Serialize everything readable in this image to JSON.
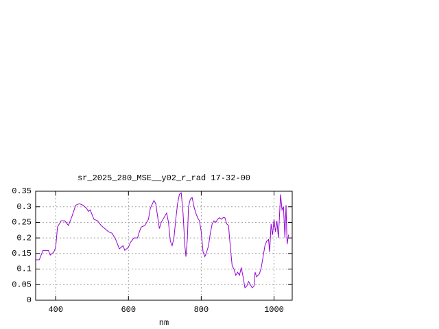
{
  "chart_data": {
    "type": "line",
    "title": "sr_2025_280_MSE__y02_r_rad 17-32-00",
    "x_label": "nm",
    "x": [
      345,
      355,
      365,
      375,
      380,
      385,
      395,
      400,
      405,
      415,
      425,
      435,
      445,
      455,
      465,
      475,
      485,
      490,
      495,
      505,
      515,
      525,
      535,
      545,
      555,
      565,
      575,
      585,
      590,
      600,
      605,
      615,
      625,
      630,
      635,
      645,
      655,
      660,
      670,
      675,
      685,
      690,
      700,
      705,
      710,
      715,
      720,
      725,
      730,
      735,
      740,
      745,
      750,
      755,
      758,
      762,
      765,
      770,
      775,
      780,
      785,
      790,
      795,
      800,
      805,
      810,
      815,
      820,
      825,
      830,
      835,
      840,
      845,
      850,
      855,
      860,
      865,
      870,
      875,
      880,
      885,
      890,
      895,
      900,
      905,
      910,
      915,
      920,
      925,
      930,
      935,
      940,
      945,
      948,
      952,
      960,
      965,
      970,
      975,
      980,
      985,
      988,
      992,
      996,
      1000,
      1004,
      1008,
      1012,
      1018,
      1022,
      1026,
      1030,
      1033,
      1036,
      1040
    ],
    "series": [
      {
        "name": "sr_2025_280_MSE__y02_r_rad",
        "color": "#9400d3",
        "values": [
          0.13,
          0.13,
          0.16,
          0.16,
          0.16,
          0.145,
          0.155,
          0.17,
          0.235,
          0.255,
          0.255,
          0.24,
          0.27,
          0.305,
          0.31,
          0.305,
          0.295,
          0.285,
          0.29,
          0.26,
          0.255,
          0.24,
          0.23,
          0.22,
          0.215,
          0.195,
          0.165,
          0.175,
          0.16,
          0.17,
          0.185,
          0.2,
          0.2,
          0.22,
          0.235,
          0.24,
          0.26,
          0.295,
          0.32,
          0.31,
          0.23,
          0.25,
          0.27,
          0.28,
          0.25,
          0.19,
          0.175,
          0.2,
          0.26,
          0.31,
          0.34,
          0.345,
          0.28,
          0.175,
          0.14,
          0.2,
          0.3,
          0.325,
          0.33,
          0.3,
          0.28,
          0.265,
          0.255,
          0.22,
          0.155,
          0.14,
          0.155,
          0.175,
          0.215,
          0.245,
          0.255,
          0.25,
          0.26,
          0.265,
          0.26,
          0.265,
          0.265,
          0.245,
          0.24,
          0.17,
          0.11,
          0.1,
          0.08,
          0.09,
          0.08,
          0.105,
          0.075,
          0.04,
          0.045,
          0.06,
          0.05,
          0.04,
          0.045,
          0.09,
          0.075,
          0.085,
          0.105,
          0.14,
          0.175,
          0.19,
          0.195,
          0.155,
          0.245,
          0.21,
          0.26,
          0.22,
          0.255,
          0.2,
          0.34,
          0.29,
          0.3,
          0.2,
          0.305,
          0.18,
          0.21
        ]
      }
    ],
    "xlim": [
      345,
      1050
    ],
    "ylim": [
      0,
      0.35
    ],
    "xticks": [
      400,
      600,
      800,
      1000
    ],
    "yticks": [
      0,
      0.05,
      0.1,
      0.15,
      0.2,
      0.25,
      0.3,
      0.35
    ],
    "grid": true
  }
}
